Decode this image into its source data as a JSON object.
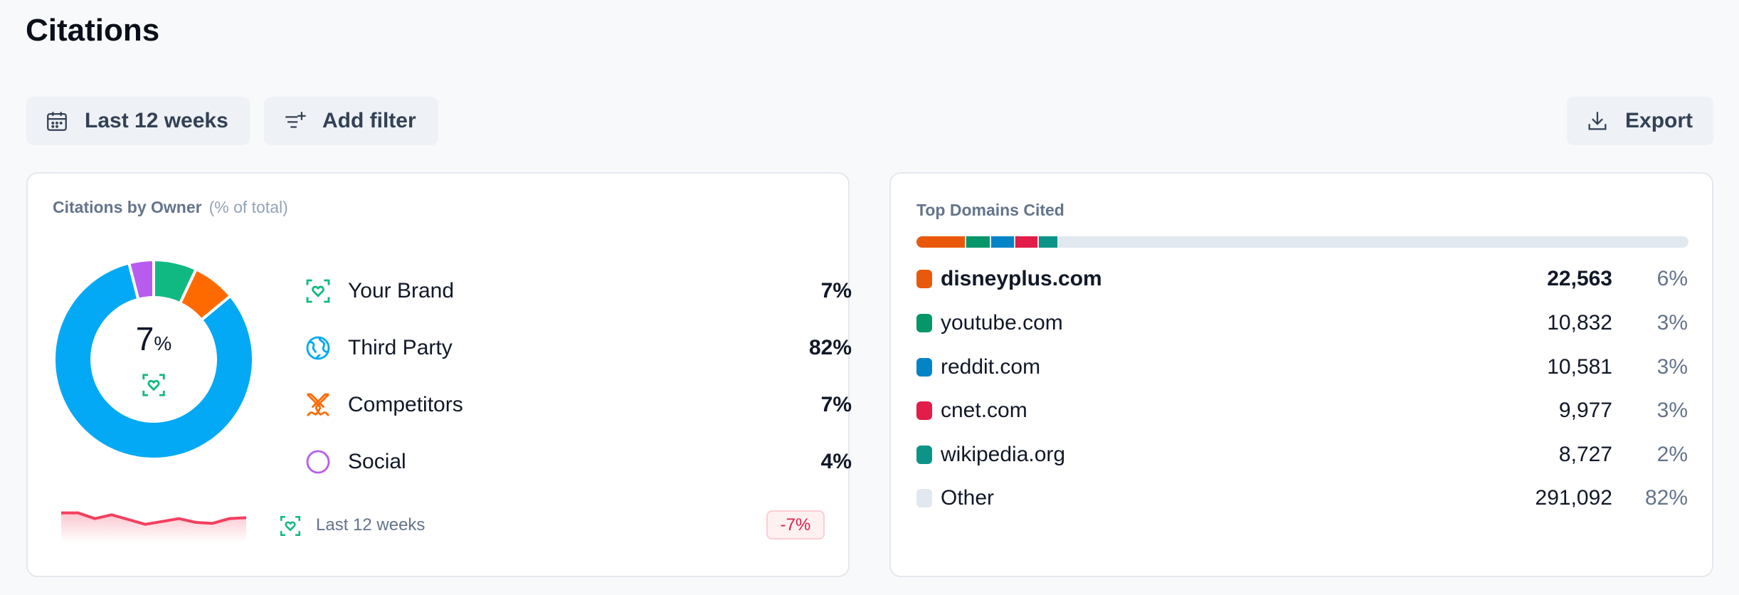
{
  "page": {
    "title": "Citations"
  },
  "toolbar": {
    "date_range": "Last 12 weeks",
    "add_filter": "Add filter",
    "export": "Export"
  },
  "owner_card": {
    "title": "Citations by Owner",
    "subtitle": "(% of total)",
    "center_value": "7",
    "center_unit": "%",
    "items": [
      {
        "label": "Your Brand",
        "value": "7%",
        "pct": 7,
        "color": "#10b981",
        "icon": "brand-heart-icon"
      },
      {
        "label": "Third Party",
        "value": "82%",
        "pct": 82,
        "color": "#03a9f4",
        "icon": "globe-icon"
      },
      {
        "label": "Competitors",
        "value": "7%",
        "pct": 7,
        "color": "#ff6a00",
        "icon": "crossed-swords-icon"
      },
      {
        "label": "Social",
        "value": "4%",
        "pct": 4,
        "color": "#b85cf0",
        "icon": "circle-icon"
      }
    ],
    "trend_label": "Last 12 weeks",
    "trend_change": "-7%",
    "trend_color": "#f43f5e",
    "sparkline": [
      8.2,
      8.2,
      7.6,
      8.0,
      7.5,
      7.0,
      7.3,
      7.6,
      7.2,
      7.1,
      7.6,
      7.7
    ]
  },
  "domains_card": {
    "title": "Top Domains Cited",
    "rows": [
      {
        "domain": "disneyplus.com",
        "count": "22,563",
        "pct": "6%",
        "share": 6.3,
        "color": "#ea580c",
        "bold": true
      },
      {
        "domain": "youtube.com",
        "count": "10,832",
        "pct": "3%",
        "share": 3.0,
        "color": "#059669"
      },
      {
        "domain": "reddit.com",
        "count": "10,581",
        "pct": "3%",
        "share": 3.0,
        "color": "#0284c7"
      },
      {
        "domain": "cnet.com",
        "count": "9,977",
        "pct": "3%",
        "share": 2.8,
        "color": "#e11d48"
      },
      {
        "domain": "wikipedia.org",
        "count": "8,727",
        "pct": "2%",
        "share": 2.4,
        "color": "#0d9488"
      },
      {
        "domain": "Other",
        "count": "291,092",
        "pct": "82%",
        "share": 82,
        "color": "#e2e8f0"
      }
    ]
  }
}
